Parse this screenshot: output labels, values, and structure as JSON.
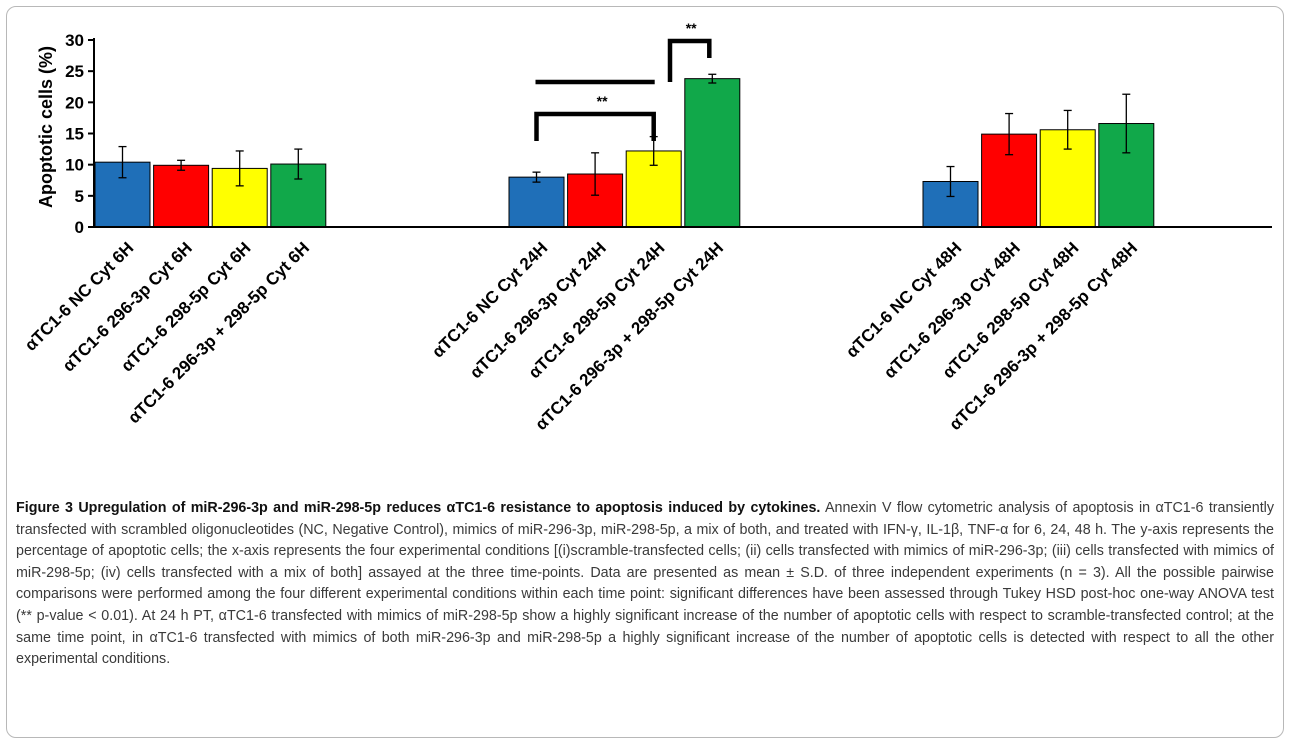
{
  "chart_data": {
    "type": "bar",
    "ylabel": "Apoptotic cells  (%)",
    "xlabel": "",
    "ylim": [
      0,
      30
    ],
    "yticks": [
      0,
      5,
      10,
      15,
      20,
      25,
      30
    ],
    "grid": false,
    "categories": [
      "αTC1-6 NC Cyt 6H",
      "αTC1-6 296-3p Cyt 6H",
      "αTC1-6 298-5p Cyt 6H",
      "αTC1-6 296-3p + 298-5p Cyt 6H",
      "αTC1-6 NC Cyt 24H",
      "αTC1-6 296-3p Cyt 24H",
      "αTC1-6 298-5p Cyt 24H",
      "αTC1-6 296-3p + 298-5p Cyt 24H",
      "αTC1-6 NC Cyt 48H",
      "αTC1-6 296-3p Cyt 48H",
      "αTC1-6 298-5p Cyt 48H",
      "αTC1-6 296-3p + 298-5p Cyt 48H"
    ],
    "values": [
      10.4,
      9.9,
      9.4,
      10.1,
      8.0,
      8.5,
      12.2,
      23.8,
      7.3,
      14.9,
      15.6,
      16.6
    ],
    "errors": [
      2.5,
      0.8,
      2.8,
      2.4,
      0.8,
      3.4,
      2.3,
      0.7,
      2.4,
      3.3,
      3.1,
      4.7
    ],
    "bar_colors": [
      "#1f6fb8",
      "#ff0000",
      "#ffff00",
      "#11a84a",
      "#1f6fb8",
      "#ff0000",
      "#ffff00",
      "#11a84a",
      "#1f6fb8",
      "#ff0000",
      "#ffff00",
      "#11a84a"
    ],
    "significance": [
      {
        "label": "**",
        "from": "αTC1-6 NC Cyt 24H",
        "to": "αTC1-6 298-5p Cyt 24H"
      },
      {
        "label": "**",
        "from": "αTC1-6 296-3p + 298-5p Cyt 24H",
        "to": "αTC1-6 NC Cyt 24H, αTC1-6 296-3p Cyt 24H, αTC1-6 298-5p Cyt 24H"
      }
    ]
  },
  "caption": {
    "title": "Figure 3 Upregulation of miR-296-3p and miR-298-5p reduces αTC1-6 resistance to apoptosis induced by cytokines.",
    "text": "Annexin V flow cytometric analysis of apoptosis in αTC1-6 transiently transfected with scrambled oligonucleotides (NC, Negative Control), mimics of miR-296-3p, miR-298-5p, a mix of both, and treated with IFN-γ, IL-1β, TNF-α for 6, 24, 48 h. The y-axis represents the percentage of apoptotic cells; the x-axis represents the four experimental conditions [(i)scramble-transfected cells; (ii) cells transfected with mimics of miR-296-3p; (iii) cells transfected with mimics of miR-298-5p; (iv) cells transfected with a mix of both] assayed at the three time-points. Data are presented as mean ± S.D. of three independent experiments (n = 3). All the possible pairwise comparisons were performed among the four different experimental conditions within each time point: significant differences have been assessed through Tukey HSD post-hoc one-way ANOVA test (** p-value < 0.01). At 24 h PT, αTC1-6 transfected with mimics of miR-298-5p show a highly significant increase of the number of apoptotic cells with respect to scramble-transfected control; at the same time point, in αTC1-6 transfected with mimics of both miR-296-3p and miR-298-5p a highly significant increase of the number of apoptotic cells is detected with respect to all the other experimental conditions."
  }
}
